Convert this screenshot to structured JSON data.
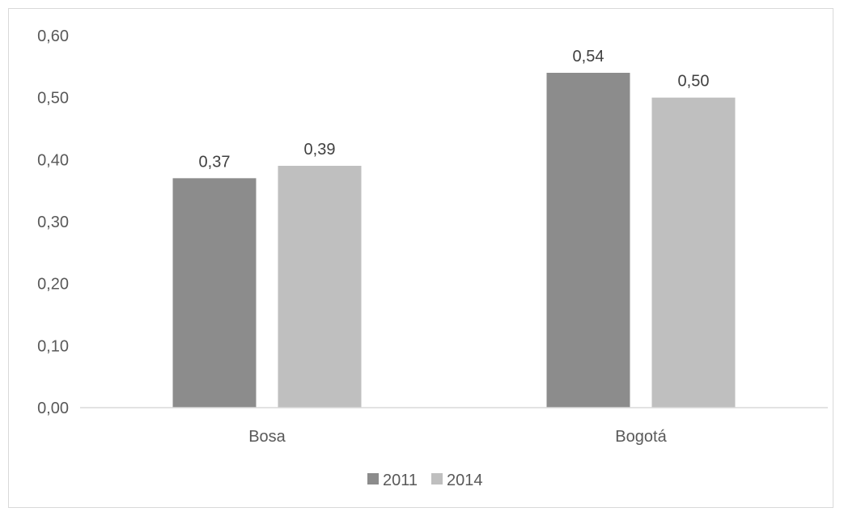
{
  "chart_data": {
    "type": "bar",
    "categories": [
      "Bosa",
      "Bogotá"
    ],
    "series": [
      {
        "name": "2011",
        "values": [
          0.37,
          0.54
        ],
        "labels": [
          "0,37",
          "0,54"
        ],
        "color": "#8c8c8c"
      },
      {
        "name": "2014",
        "values": [
          0.39,
          0.5
        ],
        "labels": [
          "0,39",
          "0,50"
        ],
        "color": "#bfbfbf"
      }
    ],
    "ylim": [
      0,
      0.6
    ],
    "yticks": [
      0,
      0.1,
      0.2,
      0.3,
      0.4,
      0.5,
      0.6
    ],
    "ytick_labels": [
      "0,00",
      "0,10",
      "0,20",
      "0,30",
      "0,40",
      "0,50",
      "0,60"
    ],
    "title": "",
    "xlabel": "",
    "ylabel": "",
    "grid": false,
    "legend_position": "bottom-center",
    "axis_color": "#d9d9d9"
  }
}
